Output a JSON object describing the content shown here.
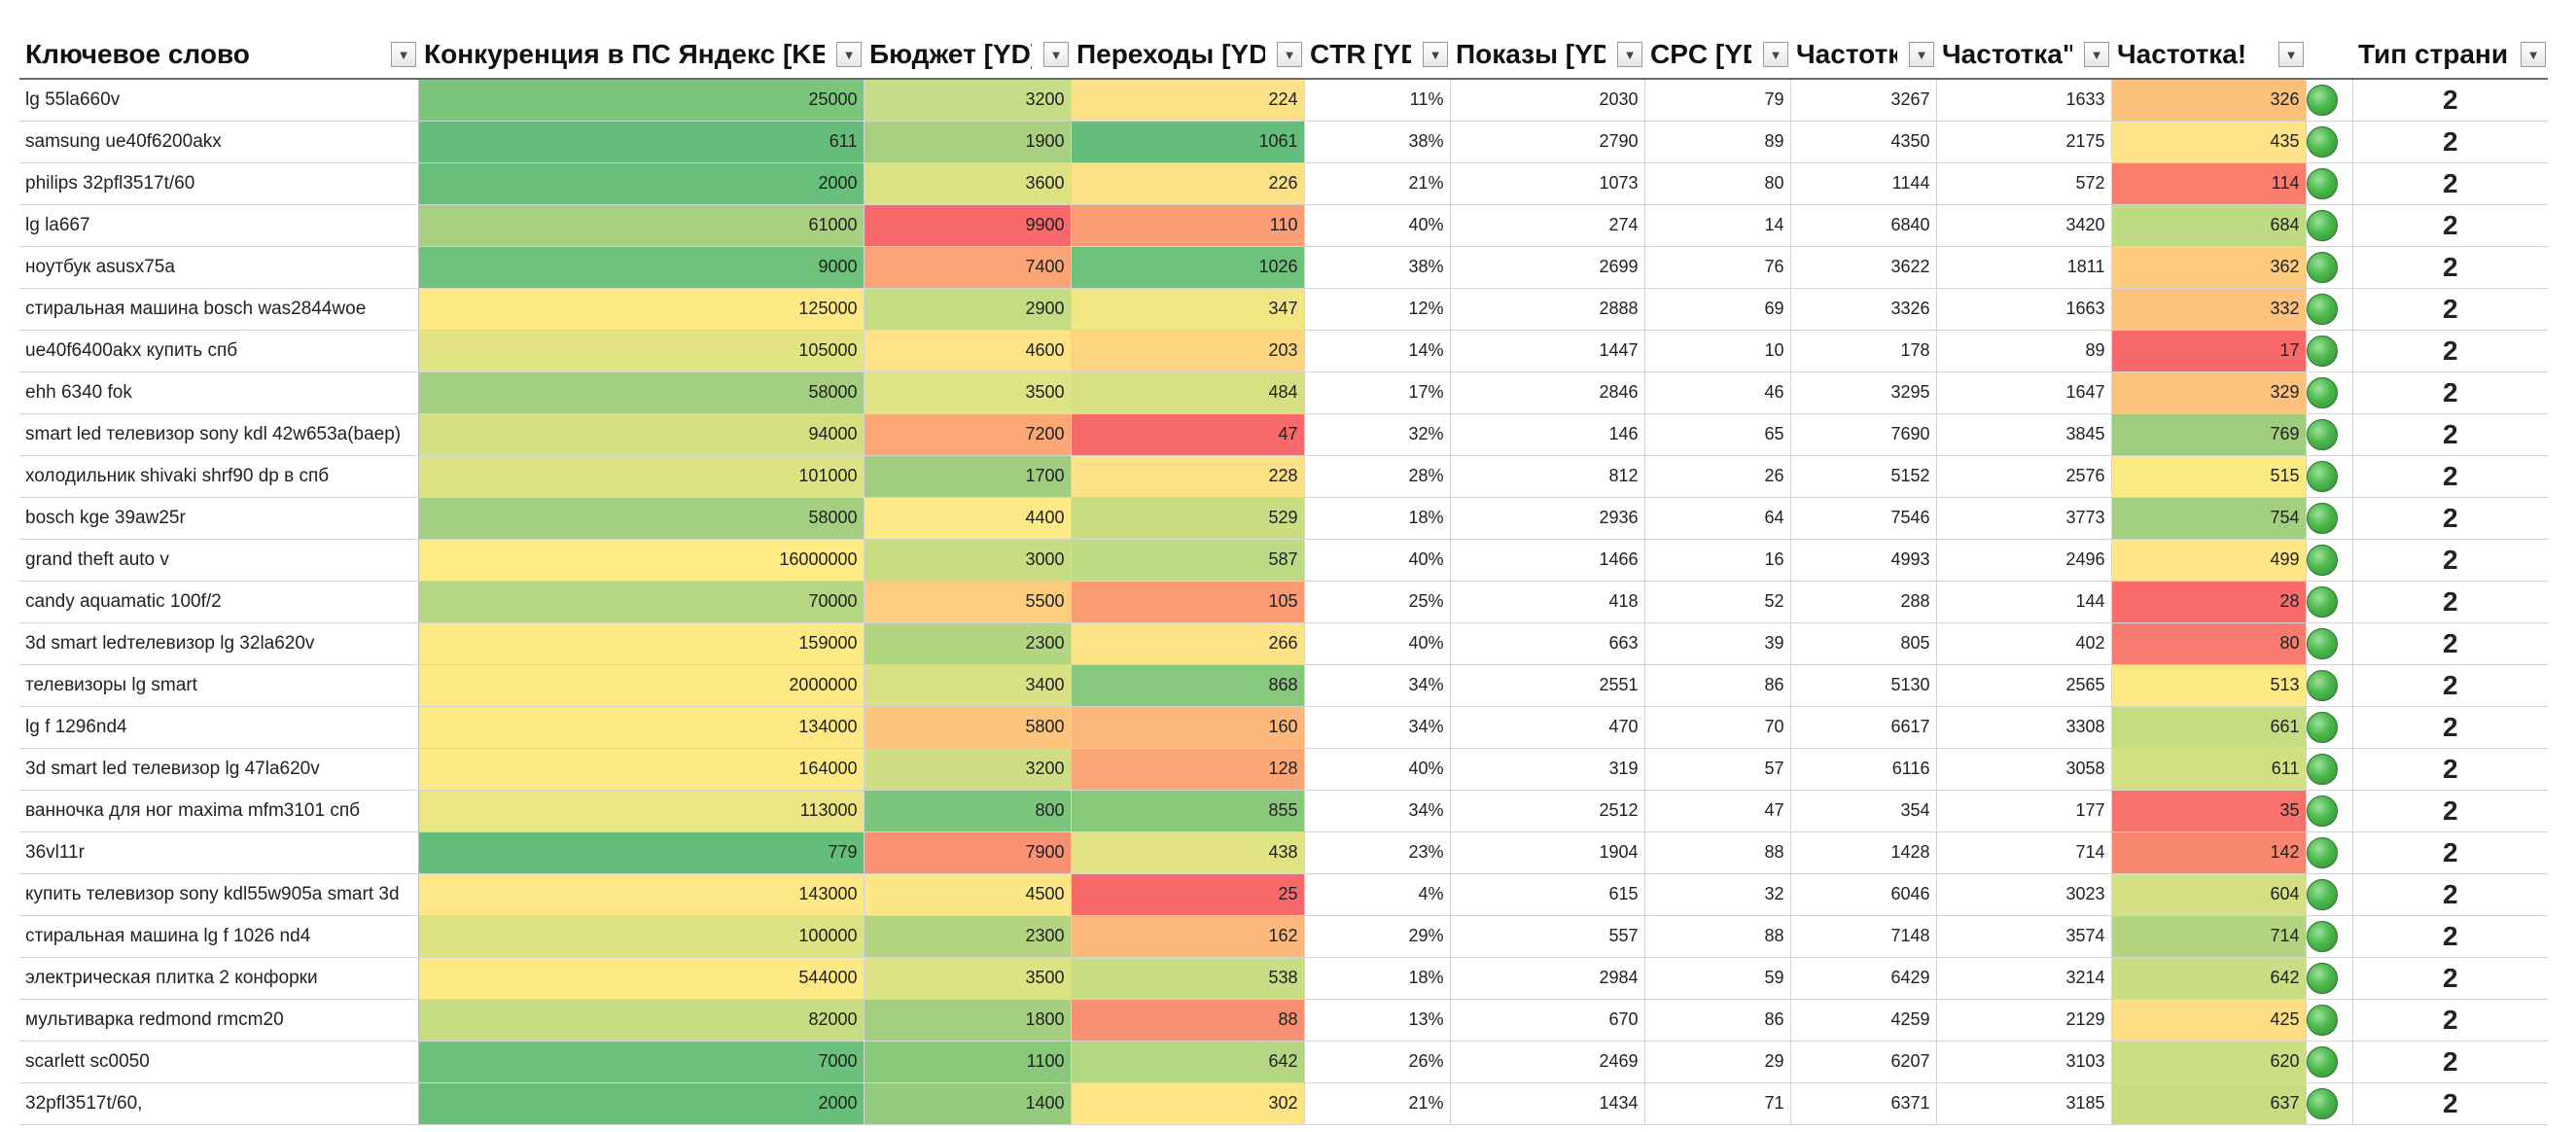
{
  "columns": [
    {
      "label": "Ключевое слово",
      "key": "kw"
    },
    {
      "label": "Конкуренция в ПС Яндекс [KEI]",
      "key": "kei"
    },
    {
      "label": "Бюджет [YD]",
      "key": "budget"
    },
    {
      "label": "Переходы [YD]",
      "key": "clicks"
    },
    {
      "label": "CTR [YD]",
      "key": "ctr"
    },
    {
      "label": "Показы [YD]",
      "key": "shows"
    },
    {
      "label": "CPC [YD]",
      "key": "cpc"
    },
    {
      "label": "Частотка",
      "key": "f1"
    },
    {
      "label": "Частотка\"\"",
      "key": "f2"
    },
    {
      "label": "Частотка!",
      "key": "f3"
    },
    {
      "label": "",
      "key": "ind"
    },
    {
      "label": "Тип страницы",
      "key": "type"
    }
  ],
  "indicator_icon": "green-circle-icon",
  "colors": {
    "green": "#63be7b",
    "yellow": "#ffeb84",
    "red": "#f8696b"
  },
  "rows": [
    {
      "kw": "lg 55la660v",
      "kei": "25000",
      "budget": "3200",
      "clicks": "224",
      "ctr": "11%",
      "shows": "2030",
      "cpc": "79",
      "f1": "3267",
      "f2": "1633",
      "f3": "326",
      "type": "2",
      "c_kei": "#7cc57c",
      "c_budget": "#c6de88",
      "c_clicks": "#fce189",
      "c_f3": "#fcc07d"
    },
    {
      "kw": "samsung ue40f6200akx",
      "kei": "611",
      "budget": "1900",
      "clicks": "1061",
      "ctr": "38%",
      "shows": "2790",
      "cpc": "89",
      "f1": "4350",
      "f2": "2175",
      "f3": "435",
      "type": "2",
      "c_kei": "#64be7a",
      "c_budget": "#a9d07e",
      "c_clicks": "#63be7b",
      "c_f3": "#fde287"
    },
    {
      "kw": "philips 32pfl3517t/60",
      "kei": "2000",
      "budget": "3600",
      "clicks": "226",
      "ctr": "21%",
      "shows": "1073",
      "cpc": "80",
      "f1": "1144",
      "f2": "572",
      "f3": "114",
      "type": "2",
      "c_kei": "#68bf7a",
      "c_budget": "#dde283",
      "c_clicks": "#fde187",
      "c_f3": "#f97d6d"
    },
    {
      "kw": "lg la667",
      "kei": "61000",
      "budget": "9900",
      "clicks": "110",
      "ctr": "40%",
      "shows": "274",
      "cpc": "14",
      "f1": "6840",
      "f2": "3420",
      "f3": "684",
      "type": "2",
      "c_kei": "#a8d080",
      "c_budget": "#f8696b",
      "c_clicks": "#fb9d75",
      "c_f3": "#bddb82",
      "sep": true
    },
    {
      "kw": "ноутбук asusx75a",
      "kei": "9000",
      "budget": "7400",
      "clicks": "1026",
      "ctr": "38%",
      "shows": "2699",
      "cpc": "76",
      "f1": "3622",
      "f2": "1811",
      "f3": "362",
      "type": "2",
      "c_kei": "#6dc17b",
      "c_budget": "#fba576",
      "c_clicks": "#6ec27b",
      "c_f3": "#fdcb7e"
    },
    {
      "kw": "стиральная машина bosch was2844woe",
      "kei": "125000",
      "budget": "2900",
      "clicks": "347",
      "ctr": "12%",
      "shows": "2888",
      "cpc": "69",
      "f1": "3326",
      "f2": "1663",
      "f3": "332",
      "type": "2",
      "c_kei": "#fde884",
      "c_budget": "#c4dc82",
      "c_clicks": "#f2e683",
      "c_f3": "#fdc27e"
    },
    {
      "kw": "ue40f6400akx купить спб",
      "kei": "105000",
      "budget": "4600",
      "clicks": "203",
      "ctr": "14%",
      "shows": "1447",
      "cpc": "10",
      "f1": "178",
      "f2": "89",
      "f3": "17",
      "type": "2",
      "c_kei": "#e2e383",
      "c_budget": "#fde385",
      "c_clicks": "#fdd580",
      "c_f3": "#f8696b"
    },
    {
      "kw": "ehh 6340 fok",
      "kei": "58000",
      "budget": "3500",
      "clicks": "484",
      "ctr": "17%",
      "shows": "2846",
      "cpc": "46",
      "f1": "3295",
      "f2": "1647",
      "f3": "329",
      "type": "2",
      "c_kei": "#a5cf80",
      "c_budget": "#dfe383",
      "c_clicks": "#d6e082",
      "c_f3": "#fdc17e",
      "sep": true
    },
    {
      "kw": "smart led телевизор sony kdl 42w653a(baep)",
      "kei": "94000",
      "budget": "7200",
      "clicks": "47",
      "ctr": "32%",
      "shows": "146",
      "cpc": "65",
      "f1": "7690",
      "f2": "3845",
      "f3": "769",
      "type": "2",
      "c_kei": "#d4df82",
      "c_budget": "#fba876",
      "c_clicks": "#f8696b",
      "c_f3": "#9fcd7f"
    },
    {
      "kw": "холодильник shivaki shrf90 dp в спб",
      "kei": "101000",
      "budget": "1700",
      "clicks": "228",
      "ctr": "28%",
      "shows": "812",
      "cpc": "26",
      "f1": "5152",
      "f2": "2576",
      "f3": "515",
      "type": "2",
      "c_kei": "#dde283",
      "c_budget": "#a0cd7f",
      "c_clicks": "#fde187",
      "c_f3": "#fbea83"
    },
    {
      "kw": "bosch kge 39aw25r",
      "kei": "58000",
      "budget": "4400",
      "clicks": "529",
      "ctr": "18%",
      "shows": "2936",
      "cpc": "64",
      "f1": "7546",
      "f2": "3773",
      "f3": "754",
      "type": "2",
      "c_kei": "#a5cf80",
      "c_budget": "#fde985",
      "c_clicks": "#cadd82",
      "c_f3": "#a4ce80",
      "sep": true
    },
    {
      "kw": "grand theft auto v",
      "kei": "16000000",
      "budget": "3000",
      "clicks": "587",
      "ctr": "40%",
      "shows": "1466",
      "cpc": "16",
      "f1": "4993",
      "f2": "2496",
      "f3": "499",
      "type": "2",
      "c_kei": "#ffeb84",
      "c_budget": "#c8dd82",
      "c_clicks": "#bddb82",
      "c_f3": "#fee685"
    },
    {
      "kw": "candy aquamatic 100f/2",
      "kei": "70000",
      "budget": "5500",
      "clicks": "105",
      "ctr": "25%",
      "shows": "418",
      "cpc": "52",
      "f1": "288",
      "f2": "144",
      "f3": "28",
      "type": "2",
      "c_kei": "#b4d581",
      "c_budget": "#fdcd7e",
      "c_clicks": "#fb9b74",
      "c_f3": "#f86d6c"
    },
    {
      "kw": "3d smart ledтелевизор lg 32la620v",
      "kei": "159000",
      "budget": "2300",
      "clicks": "266",
      "ctr": "40%",
      "shows": "663",
      "cpc": "39",
      "f1": "805",
      "f2": "402",
      "f3": "80",
      "type": "2",
      "c_kei": "#feea85",
      "c_budget": "#b3d481",
      "c_clicks": "#fde286",
      "c_f3": "#f97a6e",
      "sep": true
    },
    {
      "kw": "телевизоры lg smart",
      "kei": "2000000",
      "budget": "3400",
      "clicks": "868",
      "ctr": "34%",
      "shows": "2551",
      "cpc": "86",
      "f1": "5130",
      "f2": "2565",
      "f3": "513",
      "type": "2",
      "c_kei": "#feea85",
      "c_budget": "#d8e183",
      "c_clicks": "#86c87c",
      "c_f3": "#fce983"
    },
    {
      "kw": "lg f 1296nd4",
      "kei": "134000",
      "budget": "5800",
      "clicks": "160",
      "ctr": "34%",
      "shows": "470",
      "cpc": "70",
      "f1": "6617",
      "f2": "3308",
      "f3": "661",
      "type": "2",
      "c_kei": "#fde884",
      "c_budget": "#fcc47d",
      "c_clicks": "#fcb87a",
      "c_f3": "#c4dc82"
    },
    {
      "kw": "3d smart led телевизор lg 47la620v",
      "kei": "164000",
      "budget": "3200",
      "clicks": "128",
      "ctr": "40%",
      "shows": "319",
      "cpc": "57",
      "f1": "6116",
      "f2": "3058",
      "f3": "611",
      "type": "2",
      "c_kei": "#feea85",
      "c_budget": "#cfde82",
      "c_clicks": "#fba676",
      "c_f3": "#d2df82"
    },
    {
      "kw": "ванночка для ног maxima mfm3101 спб",
      "kei": "113000",
      "budget": "800",
      "clicks": "855",
      "ctr": "34%",
      "shows": "2512",
      "cpc": "47",
      "f1": "354",
      "f2": "177",
      "f3": "35",
      "type": "2",
      "c_kei": "#ebe583",
      "c_budget": "#7cc57c",
      "c_clicks": "#88c97c",
      "c_f3": "#f8716b",
      "sep": true
    },
    {
      "kw": "36vl11r",
      "kei": "779",
      "budget": "7900",
      "clicks": "438",
      "ctr": "23%",
      "shows": "1904",
      "cpc": "88",
      "f1": "1428",
      "f2": "714",
      "f3": "142",
      "type": "2",
      "c_kei": "#63be7b",
      "c_budget": "#fa9173",
      "c_clicks": "#e0e283",
      "c_f3": "#f9866f"
    },
    {
      "kw": "купить телевизор sony kdl55w905a smart 3d",
      "kei": "143000",
      "budget": "4500",
      "clicks": "25",
      "ctr": "4%",
      "shows": "615",
      "cpc": "32",
      "f1": "6046",
      "f2": "3023",
      "f3": "604",
      "type": "2",
      "c_kei": "#fee885",
      "c_budget": "#fde785",
      "c_clicks": "#f8696b",
      "c_f3": "#d3df82"
    },
    {
      "kw": "стиральная машина lg f 1026 nd4",
      "kei": "100000",
      "budget": "2300",
      "clicks": "162",
      "ctr": "29%",
      "shows": "557",
      "cpc": "88",
      "f1": "7148",
      "f2": "3574",
      "f3": "714",
      "type": "2",
      "c_kei": "#dce282",
      "c_budget": "#b3d481",
      "c_clicks": "#fcb87a",
      "c_f3": "#b3d481"
    },
    {
      "kw": "электрическая плитка 2 конфорки",
      "kei": "544000",
      "budget": "3500",
      "clicks": "538",
      "ctr": "18%",
      "shows": "2984",
      "cpc": "59",
      "f1": "6429",
      "f2": "3214",
      "f3": "642",
      "type": "2",
      "c_kei": "#fee985",
      "c_budget": "#dde283",
      "c_clicks": "#c9dd82",
      "c_f3": "#c9dd82"
    },
    {
      "kw": "мультиварка redmond rmcm20",
      "kei": "82000",
      "budget": "1800",
      "clicks": "88",
      "ctr": "13%",
      "shows": "670",
      "cpc": "86",
      "f1": "4259",
      "f2": "2129",
      "f3": "425",
      "type": "2",
      "c_kei": "#c5dc82",
      "c_budget": "#a5cf80",
      "c_clicks": "#f98f72",
      "c_f3": "#fddd83"
    },
    {
      "kw": "scarlett sc0050",
      "kei": "7000",
      "budget": "1100",
      "clicks": "642",
      "ctr": "26%",
      "shows": "2469",
      "cpc": "29",
      "f1": "6207",
      "f2": "3103",
      "f3": "620",
      "type": "2",
      "c_kei": "#6bc07b",
      "c_budget": "#88c97c",
      "c_clicks": "#b4d581",
      "c_f3": "#ccde82"
    },
    {
      "kw": "32pfl3517t/60,",
      "kei": "2000",
      "budget": "1400",
      "clicks": "302",
      "ctr": "21%",
      "shows": "1434",
      "cpc": "71",
      "f1": "6371",
      "f2": "3185",
      "f3": "637",
      "type": "2",
      "c_kei": "#68bf7a",
      "c_budget": "#94cb7e",
      "c_clicks": "#fde586",
      "c_f3": "#c8dd82"
    }
  ]
}
